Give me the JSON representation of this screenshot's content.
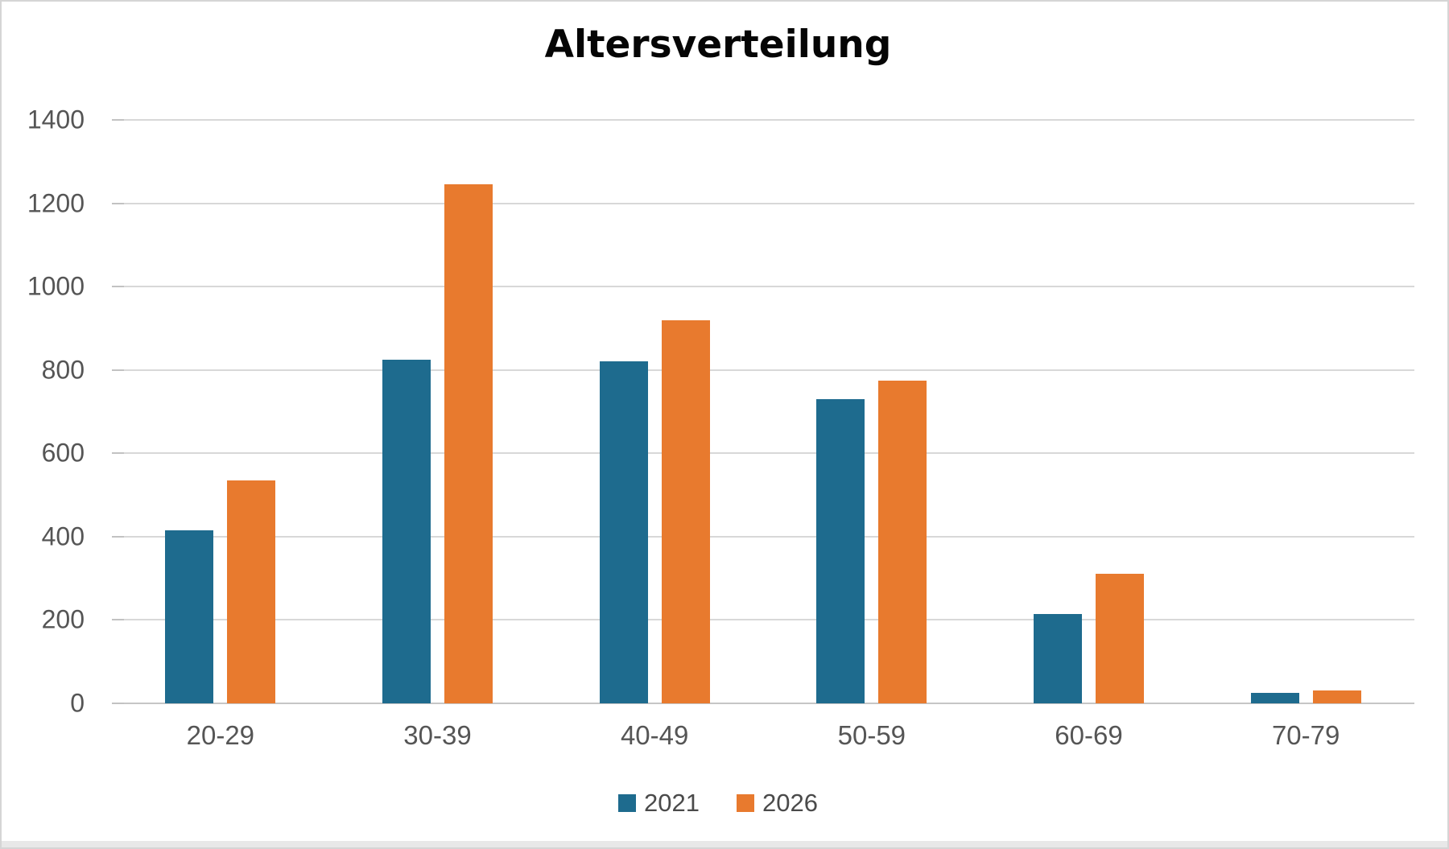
{
  "title": "Altersverteilung",
  "chart_data": {
    "type": "bar",
    "title": "Altersverteilung",
    "categories": [
      "20-29",
      "30-39",
      "40-49",
      "50-59",
      "60-69",
      "70-79"
    ],
    "series": [
      {
        "name": "2021",
        "color": "#1E6B8E",
        "values": [
          415,
          825,
          820,
          730,
          215,
          25
        ]
      },
      {
        "name": "2026",
        "color": "#E87A2E",
        "values": [
          535,
          1245,
          920,
          775,
          310,
          30
        ]
      }
    ],
    "xlabel": "",
    "ylabel": "",
    "ylim": [
      0,
      1400
    ],
    "yticks": [
      0,
      200,
      400,
      600,
      800,
      1000,
      1200,
      1400
    ],
    "grid": "horizontal",
    "legend_position": "bottom",
    "legend_entries": [
      "2021",
      "2026"
    ]
  },
  "colors": {
    "series_2021": "#1E6B8E",
    "series_2026": "#E87A2E",
    "gridline": "#D8D8D8",
    "baseline": "#C6C6C6",
    "tick": "#C2C2C2",
    "axis_text": "#555555",
    "legend_text": "#4A4A4A",
    "title_text": "#050505",
    "frame_border": "#D5D5D5",
    "bottom_strip": "#E8E8E8"
  }
}
